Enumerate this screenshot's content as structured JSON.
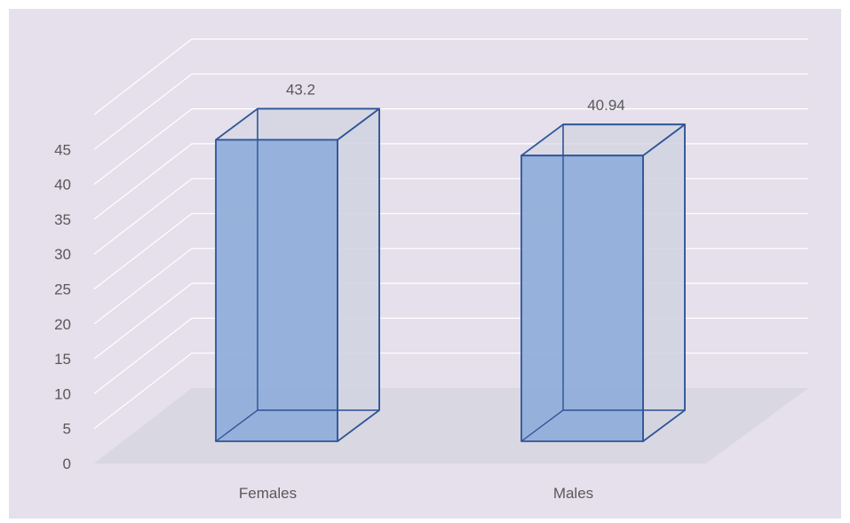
{
  "chart_data": {
    "type": "bar",
    "title": "",
    "xlabel": "",
    "ylabel": "",
    "categories": [
      "Females",
      "Males"
    ],
    "values": [
      43.2,
      40.94
    ],
    "data_labels": [
      "43.2",
      "40.94"
    ],
    "ylim": [
      0,
      45
    ],
    "yticks": [
      "0",
      "5",
      "10",
      "15",
      "20",
      "25",
      "30",
      "35",
      "40",
      "45"
    ],
    "grid": true,
    "legend": "none",
    "style": "3d-column",
    "colors": {
      "background": "#E5E0EC",
      "floor": "#D9D7E1",
      "gridline": "#FFFFFF",
      "bar_front": "#8FADD9",
      "bar_side": "#D2D3E1",
      "bar_edge": "#2F5597",
      "text": "#595959"
    }
  }
}
